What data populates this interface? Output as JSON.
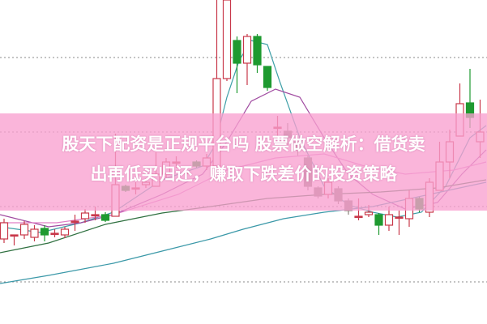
{
  "title": {
    "line1": "股天下配资是正规平台吗 股票做空解析：借货卖",
    "line2": "出再低买归还，赚取下跌差价的投资策略"
  },
  "colors": {
    "up": "#c8384a",
    "down": "#1e9a30",
    "flat": "#8a8078",
    "banner": "#f8a0d0",
    "grid": "#888888"
  },
  "chart_data": {
    "type": "candlestick",
    "title": "",
    "grid": true,
    "ylim": [
      0,
      400
    ],
    "candles": [
      {
        "o": 105,
        "c": 125,
        "h": 130,
        "l": 100
      },
      {
        "o": 110,
        "c": 110,
        "h": 110,
        "l": 97
      },
      {
        "o": 110,
        "c": 123,
        "h": 127,
        "l": 105
      },
      {
        "o": 107,
        "c": 117,
        "h": 122,
        "l": 102
      },
      {
        "o": 118,
        "c": 110,
        "h": 122,
        "l": 102
      },
      {
        "o": 112,
        "c": 112,
        "h": 117,
        "l": 107
      },
      {
        "o": 110,
        "c": 117,
        "h": 120,
        "l": 106
      },
      {
        "o": 127,
        "c": 127,
        "h": 135,
        "l": 115
      },
      {
        "o": 130,
        "c": 137,
        "h": 142,
        "l": 125
      },
      {
        "o": 135,
        "c": 135,
        "h": 145,
        "l": 128
      },
      {
        "o": 135,
        "c": 128,
        "h": 138,
        "l": 126
      },
      {
        "o": 133,
        "c": 172,
        "h": 235,
        "l": 133
      },
      {
        "o": 170,
        "c": 165,
        "h": 172,
        "l": 163
      },
      {
        "o": 168,
        "c": 168,
        "h": 175,
        "l": 160
      },
      {
        "o": 172,
        "c": 175,
        "h": 180,
        "l": 168
      },
      {
        "o": 170,
        "c": 185,
        "h": 212,
        "l": 170
      },
      {
        "o": 185,
        "c": 200,
        "h": 205,
        "l": 180
      },
      {
        "o": 200,
        "c": 200,
        "h": 207,
        "l": 193
      },
      {
        "o": 187,
        "c": 187,
        "h": 193,
        "l": 180
      },
      {
        "o": 200,
        "c": 195,
        "h": 202,
        "l": 193
      },
      {
        "o": 195,
        "c": 205,
        "h": 210,
        "l": 190
      },
      {
        "o": 195,
        "c": 303,
        "h": 400,
        "l": 195
      },
      {
        "o": 303,
        "c": 400,
        "h": 400,
        "l": 300
      },
      {
        "o": 350,
        "c": 322,
        "h": 355,
        "l": 285
      },
      {
        "o": 322,
        "c": 355,
        "h": 358,
        "l": 295
      },
      {
        "o": 355,
        "c": 320,
        "h": 358,
        "l": 310
      },
      {
        "o": 318,
        "c": 292,
        "h": 318,
        "l": 288
      },
      {
        "o": 243,
        "c": 243,
        "h": 257,
        "l": 228
      },
      {
        "o": 238,
        "c": 230,
        "h": 248,
        "l": 220
      },
      {
        "o": 225,
        "c": 215,
        "h": 228,
        "l": 208
      },
      {
        "o": 205,
        "c": 170,
        "h": 208,
        "l": 165
      },
      {
        "o": 168,
        "c": 158,
        "h": 170,
        "l": 155
      },
      {
        "o": 160,
        "c": 175,
        "h": 180,
        "l": 155
      },
      {
        "o": 167,
        "c": 152,
        "h": 170,
        "l": 148
      },
      {
        "o": 152,
        "c": 140,
        "h": 155,
        "l": 135
      },
      {
        "o": 133,
        "c": 133,
        "h": 155,
        "l": 128
      },
      {
        "o": 135,
        "c": 138,
        "h": 147,
        "l": 132
      },
      {
        "o": 135,
        "c": 122,
        "h": 137,
        "l": 110
      },
      {
        "o": 122,
        "c": 135,
        "h": 145,
        "l": 115
      },
      {
        "o": 132,
        "c": 132,
        "h": 140,
        "l": 110
      },
      {
        "o": 130,
        "c": 155,
        "h": 165,
        "l": 120
      },
      {
        "o": 155,
        "c": 142,
        "h": 157,
        "l": 138
      },
      {
        "o": 138,
        "c": 175,
        "h": 180,
        "l": 132
      },
      {
        "o": 165,
        "c": 200,
        "h": 225,
        "l": 165
      },
      {
        "o": 200,
        "c": 225,
        "h": 240,
        "l": 180
      },
      {
        "o": 232,
        "c": 272,
        "h": 297,
        "l": 232
      },
      {
        "o": 273,
        "c": 255,
        "h": 315,
        "l": 242
      },
      {
        "o": 225,
        "c": 237,
        "h": 277,
        "l": 205
      }
    ],
    "moving_averages": [
      {
        "color": "#3fa0a8",
        "values": [
          [
            0,
            120
          ],
          [
            50,
            113
          ],
          [
            100,
            125
          ],
          [
            140,
            138
          ],
          [
            200,
            178
          ],
          [
            250,
            195
          ],
          [
            265,
            220
          ],
          [
            280,
            280
          ],
          [
            295,
            325
          ],
          [
            310,
            350
          ],
          [
            330,
            345
          ],
          [
            345,
            300
          ],
          [
            370,
            230
          ],
          [
            400,
            170
          ],
          [
            430,
            147
          ],
          [
            460,
            138
          ],
          [
            490,
            132
          ],
          [
            520,
            138
          ],
          [
            550,
            170
          ],
          [
            580,
            230
          ],
          [
            600,
            245
          ]
        ]
      },
      {
        "color": "#a04aa0",
        "values": [
          [
            0,
            135
          ],
          [
            60,
            120
          ],
          [
            100,
            125
          ],
          [
            140,
            135
          ],
          [
            200,
            160
          ],
          [
            250,
            185
          ],
          [
            280,
            225
          ],
          [
            310,
            275
          ],
          [
            340,
            290
          ],
          [
            370,
            280
          ],
          [
            400,
            230
          ],
          [
            430,
            185
          ],
          [
            460,
            160
          ],
          [
            500,
            142
          ],
          [
            540,
            150
          ],
          [
            570,
            185
          ],
          [
            600,
            215
          ]
        ]
      },
      {
        "color": "#e080c8",
        "values": [
          [
            0,
            125
          ],
          [
            70,
            125
          ],
          [
            140,
            135
          ],
          [
            220,
            160
          ],
          [
            280,
            190
          ],
          [
            340,
            205
          ],
          [
            400,
            210
          ],
          [
            450,
            195
          ],
          [
            500,
            185
          ],
          [
            560,
            190
          ],
          [
            600,
            200
          ]
        ]
      },
      {
        "color": "#2f7040",
        "values": [
          [
            0,
            88
          ],
          [
            60,
            100
          ],
          [
            130,
            123
          ],
          [
            200,
            137
          ],
          [
            260,
            145
          ],
          [
            330,
            155
          ],
          [
            400,
            160
          ],
          [
            470,
            163
          ],
          [
            540,
            168
          ],
          [
            600,
            178
          ]
        ]
      },
      {
        "color": "#3a98a8",
        "values": [
          [
            0,
            50
          ],
          [
            60,
            60
          ],
          [
            140,
            75
          ],
          [
            200,
            90
          ],
          [
            260,
            105
          ],
          [
            300,
            117
          ],
          [
            350,
            130
          ],
          [
            400,
            138
          ],
          [
            460,
            145
          ],
          [
            530,
            160
          ],
          [
            600,
            175
          ]
        ]
      }
    ],
    "gridlines": [
      329,
      237,
      145,
      52
    ]
  }
}
